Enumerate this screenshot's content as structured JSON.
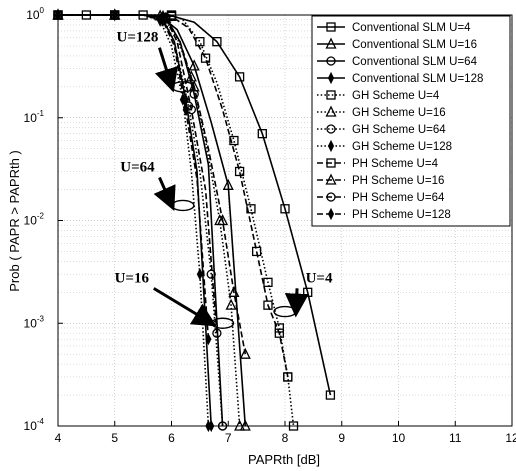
{
  "chart_data": {
    "type": "line",
    "title": "",
    "xlabel": "PAPRth [dB]",
    "ylabel": "Prob ( PAPR > PAPRth )",
    "xlim": [
      4,
      12
    ],
    "ylim": [
      0.0001,
      1
    ],
    "yscale": "log",
    "grid": true,
    "legend_position": "top-right",
    "x_ticks": [
      "4",
      "5",
      "6",
      "7",
      "8",
      "9",
      "10",
      "11",
      "12"
    ],
    "y_ticks": [
      {
        "base": "10",
        "exp": "0",
        "value": 1
      },
      {
        "base": "10",
        "exp": "-1",
        "value": 0.1
      },
      {
        "base": "10",
        "exp": "-2",
        "value": 0.01
      },
      {
        "base": "10",
        "exp": "-3",
        "value": 0.001
      },
      {
        "base": "10",
        "exp": "-4",
        "value": 0.0001
      }
    ],
    "series": [
      {
        "name": "Conventional SLM U=4",
        "line": "solid",
        "marker": "square",
        "color": "#000000",
        "x": [
          4,
          4.25,
          4.5,
          4.75,
          5,
          5.25,
          5.5,
          5.75,
          6,
          6.4,
          6.8,
          7.2,
          7.6,
          8.0,
          8.4,
          8.8
        ],
        "y": [
          1,
          1,
          1,
          1,
          1,
          1,
          1,
          1,
          0.98,
          0.85,
          0.55,
          0.25,
          0.07,
          0.013,
          0.002,
          0.0002
        ]
      },
      {
        "name": "Conventional SLM U=16",
        "line": "solid",
        "marker": "triangle",
        "color": "#000000",
        "x": [
          4,
          4.5,
          5,
          5.5,
          5.8,
          6.1,
          6.4,
          6.7,
          7.0,
          7.3
        ],
        "y": [
          1,
          1,
          1,
          1,
          0.98,
          0.72,
          0.32,
          0.09,
          0.022,
          0.0001
        ]
      },
      {
        "name": "Conventional SLM U=64",
        "line": "solid",
        "marker": "circle",
        "color": "#000000",
        "x": [
          4,
          4.5,
          5,
          5.5,
          5.9,
          6.15,
          6.4,
          6.65,
          6.9
        ],
        "y": [
          1,
          1,
          1,
          1,
          0.95,
          0.55,
          0.17,
          0.035,
          0.0001
        ]
      },
      {
        "name": "Conventional SLM U=128",
        "line": "solid",
        "marker": "diamond",
        "color": "#000000",
        "x": [
          4,
          4.5,
          5,
          5.5,
          5.85,
          6.05,
          6.25,
          6.45,
          6.7
        ],
        "y": [
          1,
          1,
          1,
          1,
          0.9,
          0.55,
          0.15,
          0.03,
          0.0001
        ]
      },
      {
        "name": "GH Scheme U=4",
        "line": "dotted",
        "marker": "square",
        "color": "#000000",
        "x": [
          4,
          4.5,
          5,
          5.5,
          6,
          6.2,
          6.5,
          6.8,
          7.1,
          7.4,
          7.7,
          7.9,
          8.05,
          8.15
        ],
        "y": [
          1,
          1,
          1,
          1,
          1,
          0.9,
          0.55,
          0.22,
          0.06,
          0.013,
          0.0025,
          0.0009,
          0.0003,
          0.0001
        ]
      },
      {
        "name": "GH Scheme U=16",
        "line": "dotted",
        "marker": "triangle",
        "color": "#000000",
        "x": [
          4,
          4.5,
          5,
          5.5,
          5.85,
          6.1,
          6.35,
          6.6,
          6.85,
          7.05,
          7.2
        ],
        "y": [
          1,
          1,
          1,
          1,
          0.97,
          0.6,
          0.25,
          0.06,
          0.01,
          0.0015,
          0.0001
        ]
      },
      {
        "name": "GH Scheme U=64",
        "line": "dotted",
        "marker": "circle",
        "color": "#000000",
        "x": [
          4,
          4.5,
          5,
          5.5,
          5.85,
          6.05,
          6.3,
          6.5,
          6.7,
          6.9
        ],
        "y": [
          1,
          1,
          1,
          1,
          0.95,
          0.55,
          0.13,
          0.03,
          0.003,
          0.0001
        ]
      },
      {
        "name": "GH Scheme U=128",
        "line": "dotted",
        "marker": "diamond",
        "color": "#000000",
        "x": [
          4,
          4.5,
          5,
          5.5,
          5.8,
          6.0,
          6.2,
          6.35,
          6.5,
          6.65
        ],
        "y": [
          1,
          1,
          1,
          1,
          0.88,
          0.5,
          0.15,
          0.03,
          0.003,
          0.0001
        ]
      },
      {
        "name": "PH Scheme U=4",
        "line": "dashed",
        "marker": "square",
        "color": "#000000",
        "x": [
          4,
          4.5,
          5,
          5.5,
          6,
          6.3,
          6.6,
          6.9,
          7.2,
          7.5,
          7.7,
          7.9,
          8.05
        ],
        "y": [
          1,
          1,
          1,
          1,
          0.97,
          0.75,
          0.38,
          0.12,
          0.03,
          0.005,
          0.0015,
          0.0008,
          0.0003
        ]
      },
      {
        "name": "PH Scheme U=16",
        "line": "dashed",
        "marker": "triangle",
        "color": "#000000",
        "x": [
          4,
          4.5,
          5,
          5.5,
          5.9,
          6.15,
          6.4,
          6.65,
          6.9,
          7.1,
          7.3
        ],
        "y": [
          1,
          1,
          1,
          1,
          0.93,
          0.55,
          0.2,
          0.05,
          0.01,
          0.002,
          0.0005
        ]
      },
      {
        "name": "PH Scheme U=64",
        "line": "dashed",
        "marker": "circle",
        "color": "#000000",
        "x": [
          4,
          4.5,
          5,
          5.5,
          5.9,
          6.1,
          6.35,
          6.6,
          6.8
        ],
        "y": [
          1,
          1,
          1,
          1,
          0.92,
          0.55,
          0.12,
          0.02,
          0.0008
        ]
      },
      {
        "name": "PH Scheme U=128",
        "line": "dashed",
        "marker": "diamond",
        "color": "#000000",
        "x": [
          4,
          4.5,
          5,
          5.5,
          5.85,
          6.05,
          6.25,
          6.45,
          6.65
        ],
        "y": [
          1,
          1,
          1,
          1,
          0.88,
          0.5,
          0.12,
          0.025,
          0.0007
        ]
      }
    ],
    "annotations": [
      {
        "text": "U=128",
        "x": 5.4,
        "y": 0.55,
        "target_x": 6.2,
        "target_y": 0.2
      },
      {
        "text": "U=64",
        "x": 5.4,
        "y": 0.03,
        "target_x": 6.2,
        "target_y": 0.014
      },
      {
        "text": "U=16",
        "x": 5.3,
        "y": 0.0025,
        "target_x": 6.9,
        "target_y": 0.001
      },
      {
        "text": "U=4",
        "x": 8.6,
        "y": 0.0025,
        "target_x": 8.0,
        "target_y": 0.0013
      }
    ]
  }
}
